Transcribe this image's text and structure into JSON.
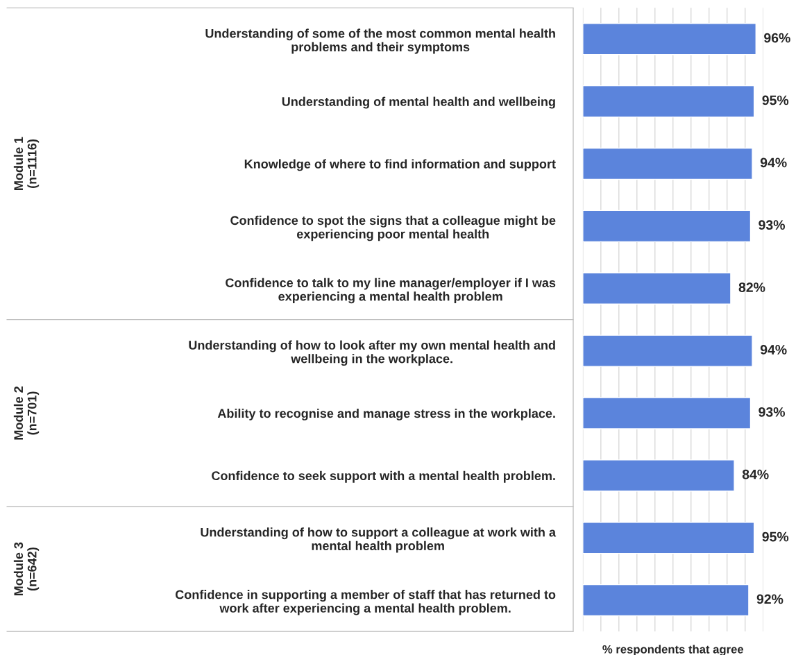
{
  "chart_data": {
    "type": "bar",
    "orientation": "horizontal",
    "xlabel": "% respondents that agree",
    "categories": [
      "Understanding of some of the most common mental health\nproblems and their symptoms",
      "Understanding of mental health and wellbeing",
      "Knowledge of where to find information and support",
      "Confidence to spot the signs that a colleague might be\nexperiencing poor mental health",
      "Confidence to talk to my line manager/employer if I was\nexperiencing a mental health problem",
      "Understanding of how to look after my own mental health and\nwellbeing in the workplace.",
      "Ability to recognise and manage stress in the workplace.",
      "Confidence to seek support with a mental health problem.",
      "Understanding of how to support a colleague at work with a\nmental health problem",
      "Confidence in supporting a member of staff that has returned to\nwork after experiencing a mental health problem."
    ],
    "values": [
      96,
      95,
      94,
      93,
      82,
      94,
      93,
      84,
      95,
      92
    ],
    "value_labels": [
      "96%",
      "95%",
      "94%",
      "93%",
      "82%",
      "94%",
      "93%",
      "84%",
      "95%",
      "92%"
    ],
    "color": "#5b84dc",
    "xlim": [
      0,
      100
    ],
    "xticks": [
      {
        "value": 0,
        "label": null
      },
      {
        "value": 10,
        "label": null
      },
      {
        "value": 20,
        "label": null
      },
      {
        "value": 30,
        "label": null
      },
      {
        "value": 40,
        "label": null
      },
      {
        "value": 50,
        "label": null
      },
      {
        "value": 60,
        "label": null
      },
      {
        "value": 70,
        "label": null
      },
      {
        "value": 80,
        "label": null
      },
      {
        "value": 90,
        "label": null
      },
      {
        "value": 100,
        "label": null
      }
    ],
    "grid": "x",
    "tick_labels": "y",
    "annotations": [
      "Module 1\n(n=1116)",
      "Module 2\n(n=701)",
      "Module 3\n(n=642)"
    ]
  }
}
